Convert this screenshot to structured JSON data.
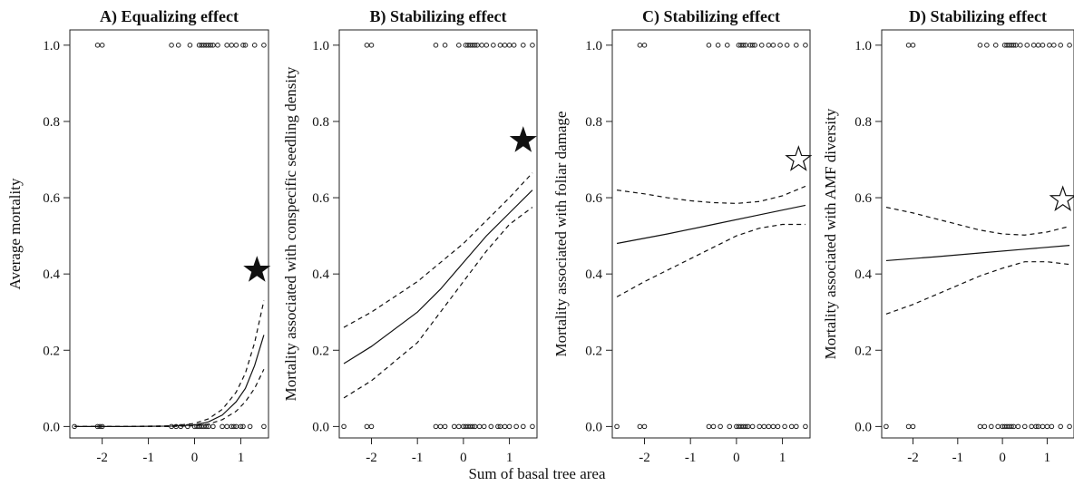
{
  "figure": {
    "shared_xlabel": "Sum of basal tree area"
  },
  "chart_data": [
    {
      "type": "line",
      "title": "A) Equalizing effect",
      "ylabel": "Average mortality",
      "xlim": [
        -2.7,
        1.6
      ],
      "ylim": [
        -0.03,
        1.04
      ],
      "xticks": [
        -2,
        -1,
        0,
        1
      ],
      "yticks": [
        "0.0",
        "0.2",
        "0.4",
        "0.6",
        "0.8",
        "1.0"
      ],
      "star": {
        "x": 1.35,
        "y": 0.41,
        "filled": true
      },
      "series": [
        {
          "style": "solid",
          "x": [
            -2.6,
            -1.5,
            -0.5,
            0.0,
            0.3,
            0.6,
            0.9,
            1.1,
            1.3,
            1.5
          ],
          "y": [
            0.0,
            0.0,
            0.001,
            0.004,
            0.012,
            0.03,
            0.065,
            0.1,
            0.16,
            0.24
          ]
        },
        {
          "style": "dashed",
          "x": [
            -2.6,
            -1.5,
            -0.5,
            0.0,
            0.3,
            0.6,
            0.9,
            1.1,
            1.3,
            1.5
          ],
          "y": [
            0.0,
            0.0,
            0.002,
            0.008,
            0.02,
            0.045,
            0.09,
            0.14,
            0.22,
            0.33
          ]
        },
        {
          "style": "dashed",
          "x": [
            -2.6,
            -1.5,
            -0.5,
            0.0,
            0.3,
            0.6,
            0.9,
            1.1,
            1.3,
            1.5
          ],
          "y": [
            0.0,
            0.0,
            0.0,
            0.002,
            0.006,
            0.018,
            0.04,
            0.065,
            0.1,
            0.15
          ]
        }
      ],
      "points_top_x": [
        -2.1,
        -2.0,
        -0.5,
        -0.35,
        -0.1,
        0.1,
        0.15,
        0.2,
        0.25,
        0.3,
        0.35,
        0.4,
        0.5,
        0.7,
        0.8,
        0.9,
        1.05,
        1.1,
        1.3,
        1.5
      ],
      "points_bottom_x": [
        -2.6,
        -2.1,
        -2.05,
        -2.0,
        -0.5,
        -0.4,
        -0.3,
        -0.15,
        0.0,
        0.05,
        0.1,
        0.15,
        0.2,
        0.25,
        0.3,
        0.4,
        0.6,
        0.7,
        0.8,
        0.85,
        0.9,
        1.0,
        1.05,
        1.2,
        1.5
      ]
    },
    {
      "type": "line",
      "title": "B) Stabilizing effect",
      "ylabel": "Mortality associated with conspecific seedling density",
      "xlim": [
        -2.7,
        1.6
      ],
      "ylim": [
        -0.03,
        1.04
      ],
      "xticks": [
        -2,
        -1,
        0,
        1
      ],
      "yticks": [
        "0.0",
        "0.2",
        "0.4",
        "0.6",
        "0.8",
        "1.0"
      ],
      "star": {
        "x": 1.3,
        "y": 0.75,
        "filled": true
      },
      "series": [
        {
          "style": "solid",
          "x": [
            -2.6,
            -2.0,
            -1.0,
            -0.5,
            0.0,
            0.5,
            1.0,
            1.5
          ],
          "y": [
            0.165,
            0.21,
            0.3,
            0.36,
            0.43,
            0.5,
            0.56,
            0.62
          ]
        },
        {
          "style": "dashed",
          "x": [
            -2.6,
            -2.0,
            -1.0,
            -0.5,
            0.0,
            0.5,
            1.0,
            1.5
          ],
          "y": [
            0.26,
            0.3,
            0.38,
            0.43,
            0.48,
            0.54,
            0.6,
            0.665
          ]
        },
        {
          "style": "dashed",
          "x": [
            -2.6,
            -2.0,
            -1.0,
            -0.5,
            0.0,
            0.5,
            1.0,
            1.5
          ],
          "y": [
            0.075,
            0.12,
            0.22,
            0.3,
            0.38,
            0.46,
            0.53,
            0.575
          ]
        }
      ],
      "points_top_x": [
        -2.1,
        -2.0,
        -0.6,
        -0.4,
        -0.1,
        0.05,
        0.1,
        0.15,
        0.2,
        0.25,
        0.3,
        0.4,
        0.5,
        0.65,
        0.8,
        0.9,
        1.0,
        1.1,
        1.3,
        1.5
      ],
      "points_bottom_x": [
        -2.6,
        -2.1,
        -2.0,
        -0.6,
        -0.5,
        -0.4,
        -0.2,
        -0.1,
        0.0,
        0.05,
        0.1,
        0.15,
        0.2,
        0.25,
        0.35,
        0.45,
        0.6,
        0.75,
        0.8,
        0.9,
        1.0,
        1.15,
        1.3,
        1.5
      ]
    },
    {
      "type": "line",
      "title": "C) Stabilizing effect",
      "ylabel": "Mortality associated with foliar damage",
      "xlim": [
        -2.7,
        1.6
      ],
      "ylim": [
        -0.03,
        1.04
      ],
      "xticks": [
        -2,
        -1,
        0,
        1
      ],
      "yticks": [
        "0.0",
        "0.2",
        "0.4",
        "0.6",
        "0.8",
        "1.0"
      ],
      "star": {
        "x": 1.35,
        "y": 0.7,
        "filled": false
      },
      "series": [
        {
          "style": "solid",
          "x": [
            -2.6,
            -1.5,
            -0.5,
            0.5,
            1.5
          ],
          "y": [
            0.48,
            0.505,
            0.53,
            0.555,
            0.58
          ]
        },
        {
          "style": "dashed",
          "x": [
            -2.6,
            -2.0,
            -1.5,
            -1.0,
            -0.5,
            0.0,
            0.5,
            1.0,
            1.5
          ],
          "y": [
            0.62,
            0.61,
            0.6,
            0.592,
            0.587,
            0.585,
            0.59,
            0.605,
            0.63
          ]
        },
        {
          "style": "dashed",
          "x": [
            -2.6,
            -2.0,
            -1.5,
            -1.0,
            -0.5,
            0.0,
            0.5,
            1.0,
            1.5
          ],
          "y": [
            0.34,
            0.38,
            0.41,
            0.44,
            0.47,
            0.5,
            0.52,
            0.53,
            0.53
          ]
        }
      ],
      "points_top_x": [
        -2.1,
        -2.0,
        -0.6,
        -0.4,
        -0.2,
        0.05,
        0.1,
        0.15,
        0.2,
        0.3,
        0.35,
        0.4,
        0.55,
        0.7,
        0.8,
        0.95,
        1.1,
        1.3,
        1.5
      ],
      "points_bottom_x": [
        -2.6,
        -2.1,
        -2.0,
        -0.6,
        -0.5,
        -0.35,
        -0.15,
        0.0,
        0.05,
        0.1,
        0.15,
        0.2,
        0.25,
        0.35,
        0.5,
        0.6,
        0.7,
        0.8,
        0.9,
        1.05,
        1.2,
        1.3,
        1.5
      ]
    },
    {
      "type": "line",
      "title": "D) Stabilizing effect",
      "ylabel": "Mortality associated with AMF diversity",
      "xlim": [
        -2.7,
        1.6
      ],
      "ylim": [
        -0.03,
        1.04
      ],
      "xticks": [
        -2,
        -1,
        0,
        1
      ],
      "yticks": [
        "0.0",
        "0.2",
        "0.4",
        "0.6",
        "0.8",
        "1.0"
      ],
      "star": {
        "x": 1.35,
        "y": 0.595,
        "filled": false
      },
      "series": [
        {
          "style": "solid",
          "x": [
            -2.6,
            -1.5,
            -0.5,
            0.5,
            1.5
          ],
          "y": [
            0.435,
            0.445,
            0.455,
            0.465,
            0.475
          ]
        },
        {
          "style": "dashed",
          "x": [
            -2.6,
            -2.0,
            -1.5,
            -1.0,
            -0.5,
            0.0,
            0.5,
            1.0,
            1.5
          ],
          "y": [
            0.575,
            0.56,
            0.545,
            0.53,
            0.515,
            0.505,
            0.502,
            0.51,
            0.525
          ]
        },
        {
          "style": "dashed",
          "x": [
            -2.6,
            -2.0,
            -1.5,
            -1.0,
            -0.5,
            0.0,
            0.5,
            1.0,
            1.5
          ],
          "y": [
            0.295,
            0.32,
            0.345,
            0.37,
            0.395,
            0.415,
            0.432,
            0.432,
            0.425
          ]
        }
      ],
      "points_top_x": [
        -2.1,
        -2.0,
        -0.5,
        -0.35,
        -0.15,
        0.05,
        0.1,
        0.15,
        0.2,
        0.25,
        0.3,
        0.4,
        0.55,
        0.7,
        0.8,
        0.9,
        1.05,
        1.15,
        1.3,
        1.5
      ],
      "points_bottom_x": [
        -2.6,
        -2.1,
        -2.0,
        -0.5,
        -0.4,
        -0.25,
        -0.1,
        0.0,
        0.05,
        0.1,
        0.15,
        0.2,
        0.25,
        0.35,
        0.5,
        0.65,
        0.75,
        0.8,
        0.9,
        1.0,
        1.1,
        1.3,
        1.5
      ]
    }
  ]
}
